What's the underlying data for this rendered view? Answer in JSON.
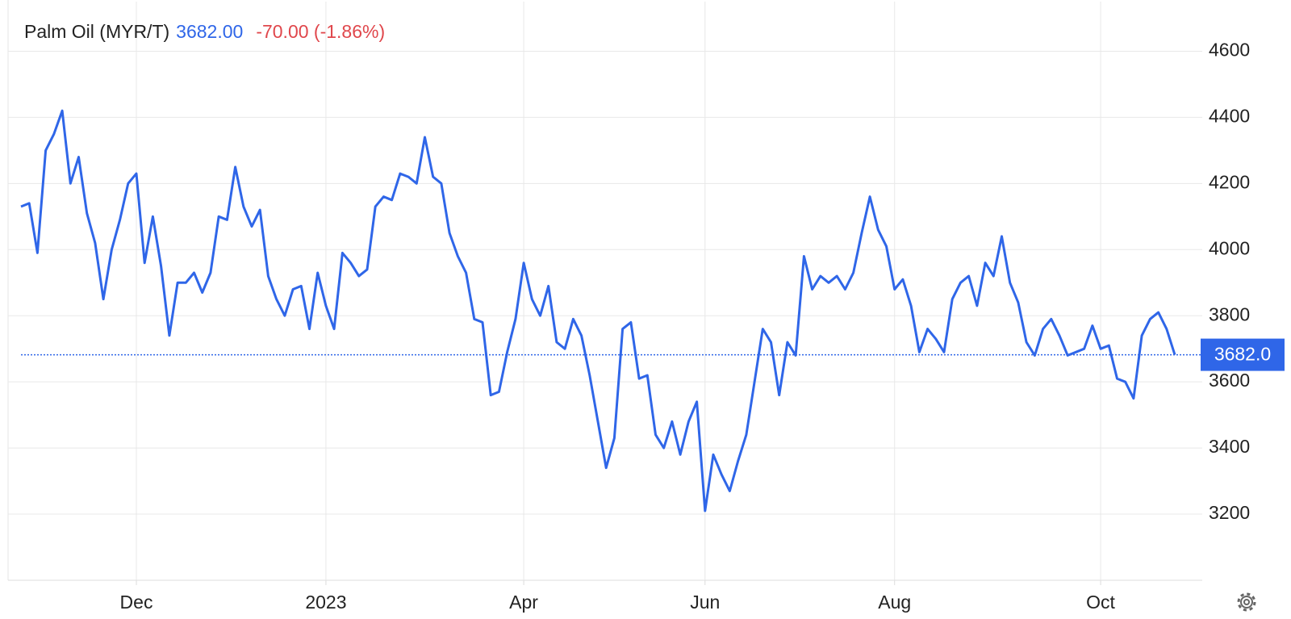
{
  "chart_data": {
    "type": "line",
    "header": {
      "title": "Palm Oil (MYR/T)",
      "price": "3682.00",
      "change": "-70.00 (-1.86%)"
    },
    "last_label": "3682.0",
    "categories": [
      null,
      null,
      null,
      null,
      null,
      null,
      null,
      null,
      null,
      null,
      null,
      null,
      null,
      null,
      "Dec",
      null,
      null,
      null,
      null,
      null,
      null,
      null,
      null,
      null,
      null,
      null,
      null,
      null,
      null,
      null,
      null,
      null,
      null,
      null,
      null,
      null,
      null,
      "2023",
      null,
      null,
      null,
      null,
      null,
      null,
      null,
      null,
      null,
      null,
      null,
      null,
      null,
      null,
      null,
      null,
      null,
      null,
      null,
      null,
      null,
      null,
      null,
      "Apr",
      null,
      null,
      null,
      null,
      null,
      null,
      null,
      null,
      null,
      null,
      null,
      null,
      null,
      null,
      null,
      null,
      null,
      null,
      null,
      null,
      null,
      "Jun",
      null,
      null,
      null,
      null,
      null,
      null,
      null,
      null,
      null,
      null,
      null,
      null,
      null,
      null,
      null,
      null,
      null,
      null,
      null,
      null,
      null,
      null,
      "Aug",
      null,
      null,
      null,
      null,
      null,
      null,
      null,
      null,
      null,
      null,
      null,
      null,
      null,
      null,
      null,
      null,
      null,
      null,
      null,
      null,
      null,
      null,
      null,
      null,
      "Oct",
      null,
      null,
      null,
      null,
      null,
      null,
      null,
      null,
      null
    ],
    "series": [
      {
        "name": "Palm Oil",
        "color": "#2f66e8",
        "values": [
          4130,
          4140,
          3990,
          4300,
          4350,
          4420,
          4200,
          4280,
          4110,
          4020,
          3850,
          4000,
          4090,
          4200,
          4230,
          3960,
          4100,
          3950,
          3740,
          3900,
          3900,
          3930,
          3870,
          3930,
          4100,
          4090,
          4250,
          4130,
          4070,
          4120,
          3920,
          3850,
          3800,
          3880,
          3890,
          3760,
          3930,
          3830,
          3760,
          3990,
          3960,
          3920,
          3940,
          4130,
          4160,
          4150,
          4230,
          4220,
          4200,
          4340,
          4220,
          4200,
          4050,
          3980,
          3930,
          3790,
          3780,
          3560,
          3570,
          3690,
          3790,
          3960,
          3850,
          3800,
          3890,
          3720,
          3700,
          3790,
          3740,
          3620,
          3480,
          3340,
          3430,
          3760,
          3780,
          3610,
          3620,
          3440,
          3400,
          3480,
          3380,
          3480,
          3540,
          3210,
          3380,
          3320,
          3270,
          3360,
          3440,
          3600,
          3760,
          3720,
          3560,
          3720,
          3680,
          3980,
          3880,
          3920,
          3900,
          3920,
          3880,
          3930,
          4050,
          4160,
          4060,
          4010,
          3880,
          3910,
          3830,
          3690,
          3760,
          3730,
          3690,
          3850,
          3900,
          3920,
          3830,
          3960,
          3920,
          4040,
          3900,
          3840,
          3720,
          3680,
          3760,
          3790,
          3740,
          3680,
          3690,
          3700,
          3770,
          3700,
          3710,
          3610,
          3600,
          3550,
          3740,
          3790,
          3810,
          3760,
          3682
        ]
      }
    ],
    "ylim": [
      3000,
      4750
    ],
    "yticks": [
      3200,
      3400,
      3600,
      3800,
      4000,
      4200,
      4400,
      4600
    ],
    "grid": true
  }
}
